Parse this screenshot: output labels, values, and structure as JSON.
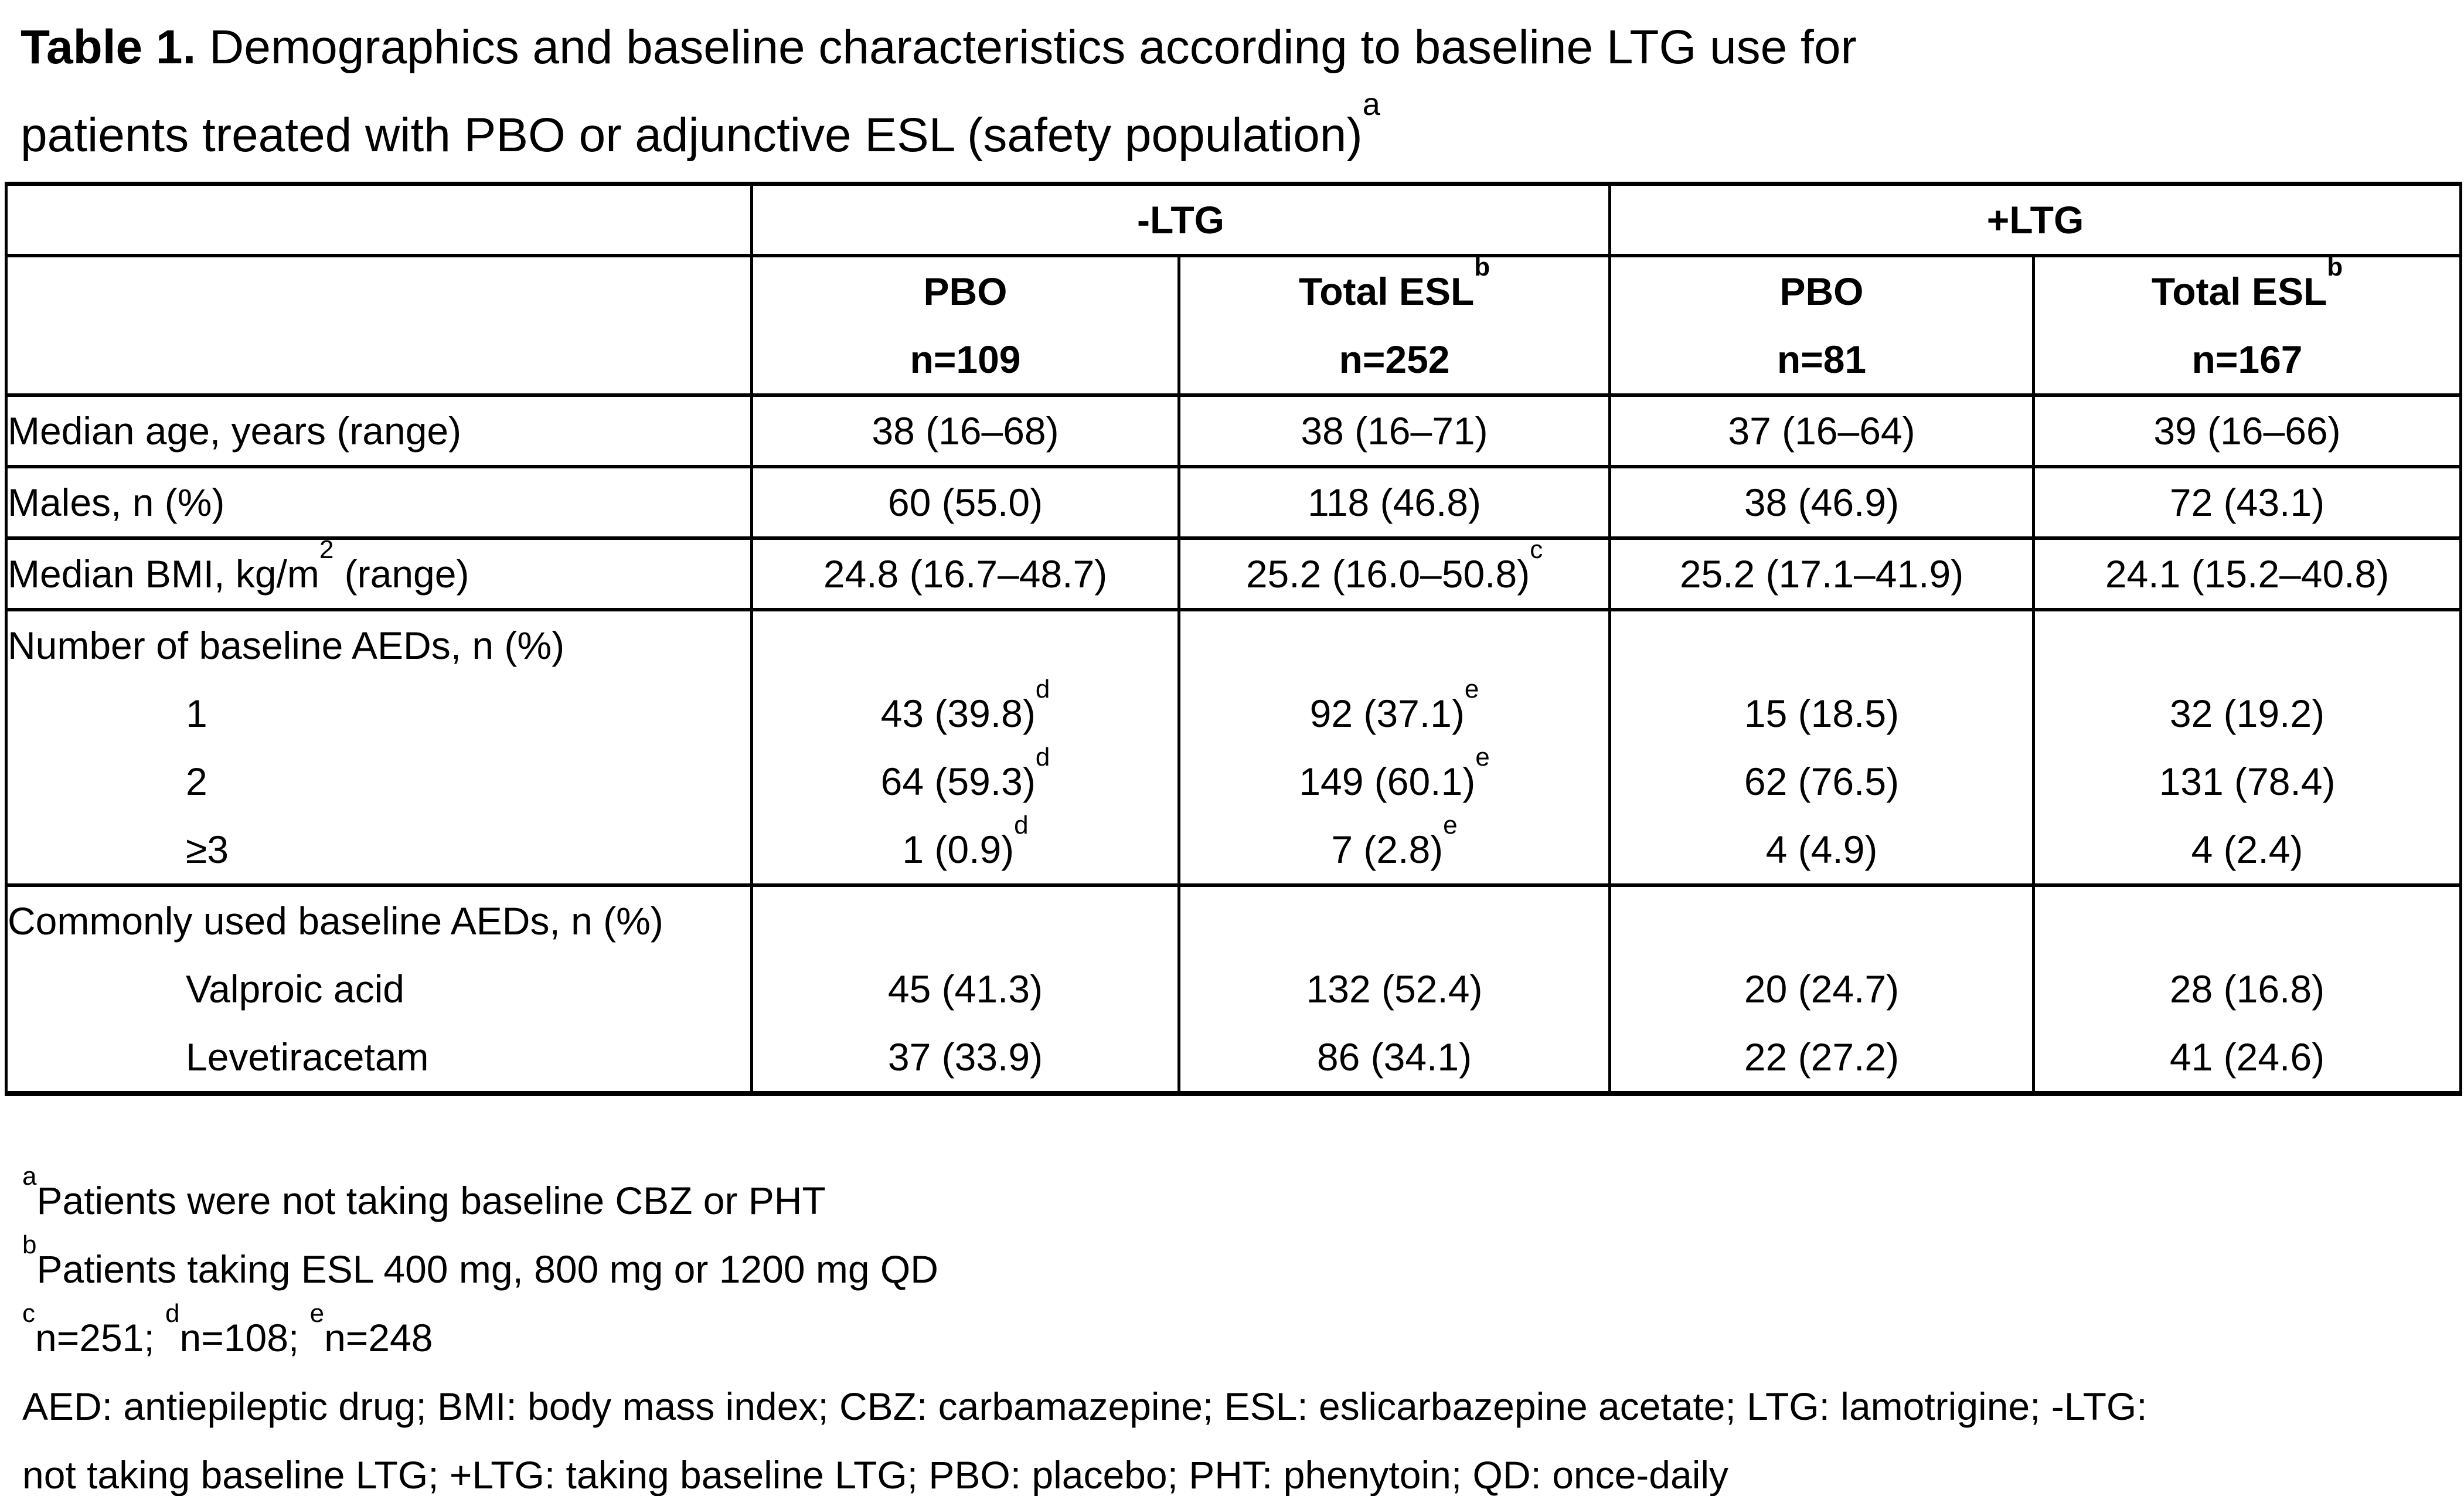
{
  "title": {
    "label": "Table 1.",
    "line1_rest": " Demographics and baseline characteristics according to baseline LTG use for",
    "line2": "patients treated with PBO or adjunctive ESL (safety population)",
    "sup": "a"
  },
  "table": {
    "group_headers": [
      {
        "label": "-LTG"
      },
      {
        "label": "+LTG"
      }
    ],
    "column_headers": [
      {
        "drug": "PBO",
        "n": "n=109"
      },
      {
        "drug": "Total ESL",
        "sup": "b",
        "n": "n=252"
      },
      {
        "drug": "PBO",
        "n": "n=81"
      },
      {
        "drug": "Total ESL",
        "sup": "b",
        "n": "n=167"
      }
    ],
    "rows": [
      {
        "label": "Median age, years (range)",
        "values": [
          {
            "text": "38 (16–68)"
          },
          {
            "text": "38 (16–71)"
          },
          {
            "text": "37 (16–64)"
          },
          {
            "text": "39 (16–66)"
          }
        ]
      },
      {
        "label": "Males, n (%)",
        "values": [
          {
            "text": "60 (55.0)"
          },
          {
            "text": "118 (46.8)"
          },
          {
            "text": "38 (46.9)"
          },
          {
            "text": "72 (43.1)"
          }
        ]
      },
      {
        "label_pre": "Median BMI, kg/m",
        "label_sup": "2",
        "label_post": " (range)",
        "values": [
          {
            "text": "24.8 (16.7–48.7)"
          },
          {
            "text": "25.2 (16.0–50.8)",
            "sup": "c"
          },
          {
            "text": "25.2 (17.1–41.9)"
          },
          {
            "text": "24.1 (15.2–40.8)"
          }
        ]
      },
      {
        "label": "Number of baseline AEDs, n (%)",
        "sub_rows": [
          {
            "label": "1",
            "values": [
              {
                "text": "43 (39.8)",
                "sup": "d"
              },
              {
                "text": "92 (37.1)",
                "sup": "e"
              },
              {
                "text": "15 (18.5)"
              },
              {
                "text": "32 (19.2)"
              }
            ]
          },
          {
            "label": "2",
            "values": [
              {
                "text": "64 (59.3)",
                "sup": "d"
              },
              {
                "text": "149 (60.1)",
                "sup": "e"
              },
              {
                "text": "62 (76.5)"
              },
              {
                "text": "131 (78.4)"
              }
            ]
          },
          {
            "label": "≥3",
            "values": [
              {
                "text": "1 (0.9)",
                "sup": "d"
              },
              {
                "text": "7 (2.8)",
                "sup": "e"
              },
              {
                "text": "4 (4.9)"
              },
              {
                "text": "4 (2.4)"
              }
            ]
          }
        ]
      },
      {
        "label": "Commonly used baseline AEDs, n (%)",
        "sub_rows": [
          {
            "label": "Valproic acid",
            "values": [
              {
                "text": "45 (41.3)"
              },
              {
                "text": "132 (52.4)"
              },
              {
                "text": "20 (24.7)"
              },
              {
                "text": "28 (16.8)"
              }
            ]
          },
          {
            "label": "Levetiracetam",
            "values": [
              {
                "text": "37 (33.9)"
              },
              {
                "text": "86 (34.1)"
              },
              {
                "text": "22 (27.2)"
              },
              {
                "text": "41 (24.6)"
              }
            ]
          }
        ]
      }
    ]
  },
  "footnotes": {
    "a": {
      "sup": "a",
      "text": "Patients were not taking baseline CBZ or PHT"
    },
    "b": {
      "sup": "b",
      "text": "Patients taking ESL 400 mg, 800 mg or 1200 mg QD"
    },
    "cde": [
      {
        "sup": "c",
        "text": "n=251; "
      },
      {
        "sup": "d",
        "text": "n=108; "
      },
      {
        "sup": "e",
        "text": "n=248"
      }
    ],
    "abbrev_line1": "AED: antiepileptic drug; BMI: body mass index; CBZ: carbamazepine; ESL: eslicarbazepine acetate; LTG: lamotrigine; -LTG:",
    "abbrev_line2": "not taking baseline LTG; +LTG: taking baseline LTG; PBO: placebo; PHT: phenytoin; QD: once-daily"
  }
}
